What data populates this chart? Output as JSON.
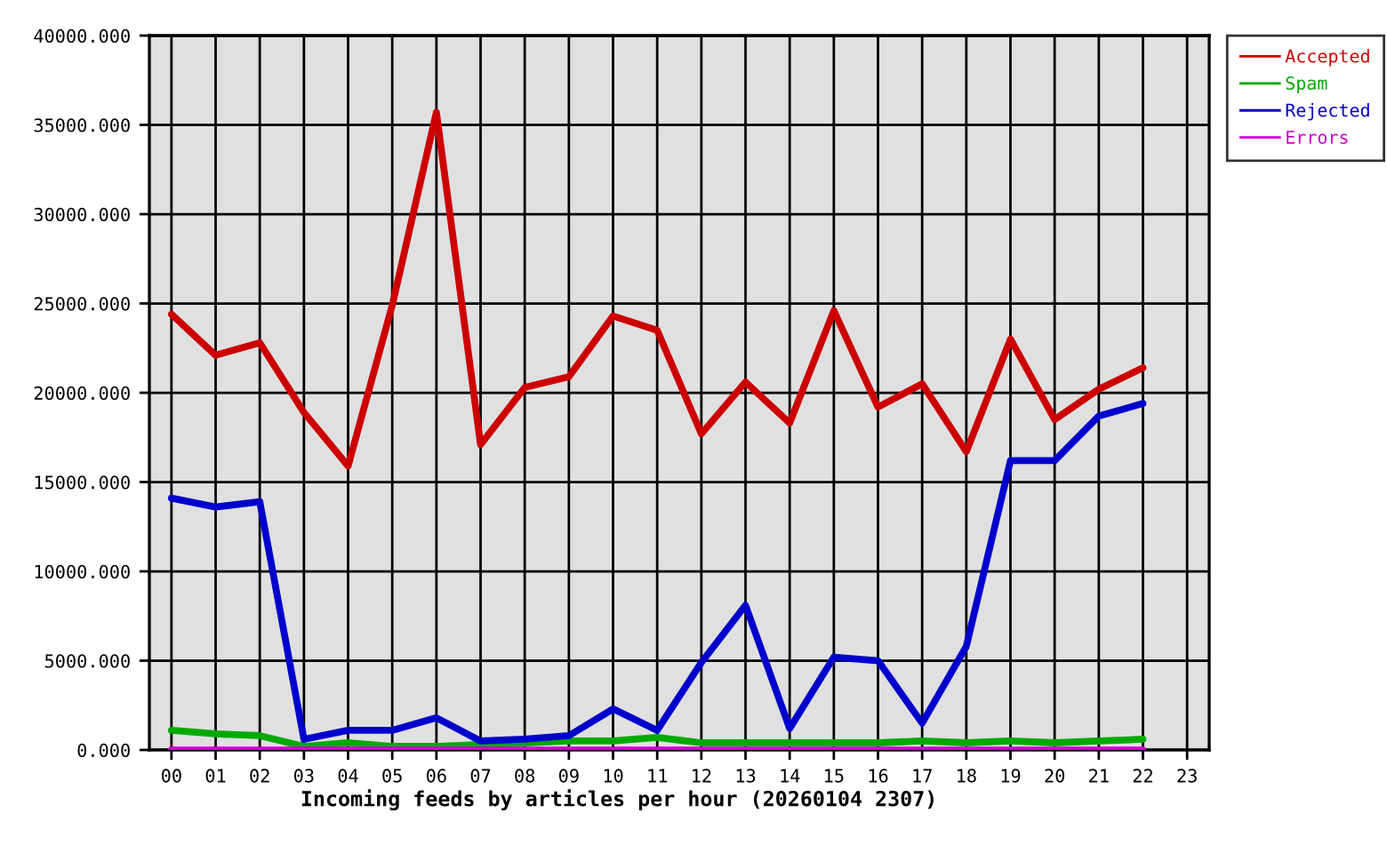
{
  "chart_data": {
    "type": "line",
    "xlabel": "Incoming feeds by articles per hour (20260104 2307)",
    "categories": [
      "00",
      "01",
      "02",
      "03",
      "04",
      "05",
      "06",
      "07",
      "08",
      "09",
      "10",
      "11",
      "12",
      "13",
      "14",
      "15",
      "16",
      "17",
      "18",
      "19",
      "20",
      "21",
      "22",
      "23"
    ],
    "series": [
      {
        "name": "Accepted",
        "color": "#cc0000",
        "values": [
          24400,
          22100,
          22800,
          18900,
          15900,
          24900,
          35700,
          17100,
          20300,
          20900,
          24300,
          23500,
          17700,
          20600,
          18300,
          24600,
          19200,
          20500,
          16700,
          23000,
          18500,
          20200,
          21400,
          null
        ]
      },
      {
        "name": "Spam",
        "color": "#00aa00",
        "values": [
          1100,
          900,
          800,
          200,
          400,
          200,
          200,
          300,
          400,
          500,
          500,
          700,
          400,
          400,
          400,
          400,
          400,
          500,
          400,
          500,
          400,
          500,
          600,
          null
        ]
      },
      {
        "name": "Rejected",
        "color": "#0000cc",
        "values": [
          14100,
          13600,
          13900,
          600,
          1100,
          1100,
          1800,
          500,
          600,
          800,
          2300,
          1100,
          4900,
          8100,
          1200,
          5200,
          5000,
          1500,
          5800,
          16200,
          16200,
          18700,
          19400,
          null
        ]
      },
      {
        "name": "Errors",
        "color": "#cc00cc",
        "values": [
          0,
          0,
          0,
          0,
          0,
          0,
          0,
          0,
          0,
          0,
          0,
          0,
          0,
          0,
          0,
          0,
          0,
          0,
          0,
          0,
          0,
          0,
          0,
          null
        ]
      }
    ],
    "ylim": [
      0,
      40000
    ],
    "yticks": [
      {
        "value": 0,
        "label": "0.000"
      },
      {
        "value": 5000,
        "label": "5000.000"
      },
      {
        "value": 10000,
        "label": "10000.000"
      },
      {
        "value": 15000,
        "label": "15000.000"
      },
      {
        "value": 20000,
        "label": "20000.000"
      },
      {
        "value": 25000,
        "label": "25000.000"
      },
      {
        "value": 30000,
        "label": "30000.000"
      },
      {
        "value": 35000,
        "label": "35000.000"
      },
      {
        "value": 40000,
        "label": "40000.000"
      }
    ],
    "grid": true,
    "legend": "top right",
    "line_style": "solid"
  }
}
